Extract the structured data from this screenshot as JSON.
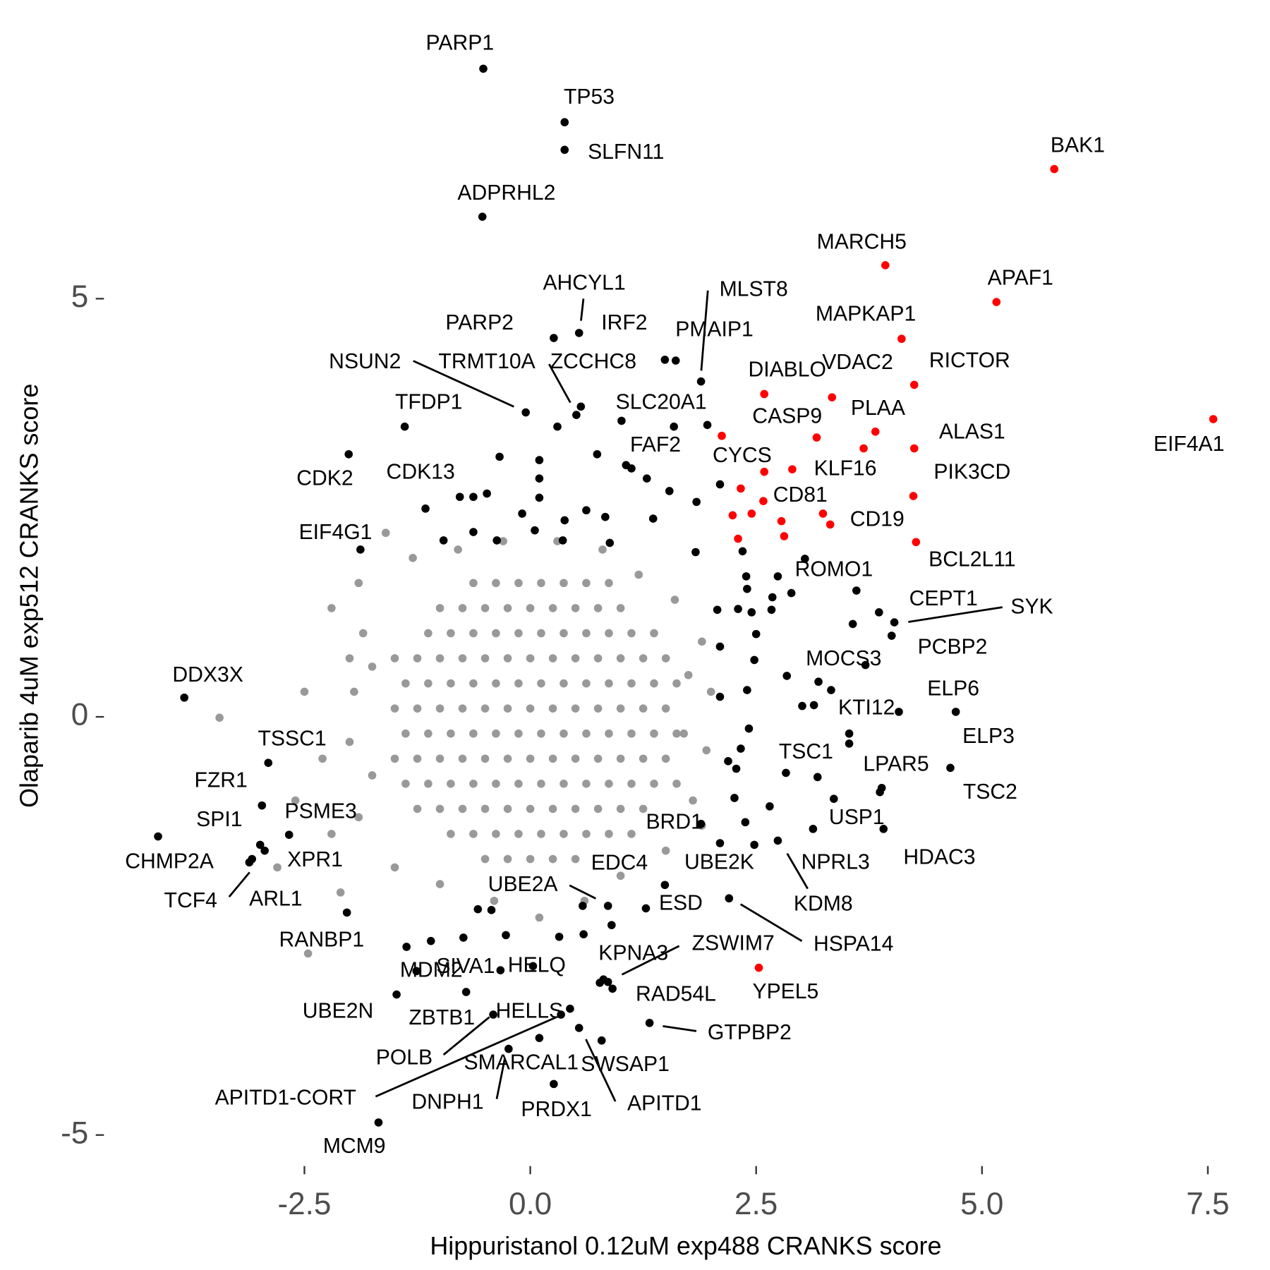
{
  "chart_data": {
    "type": "scatter",
    "x_label": "Hippuristanol 0.12uM exp488 CRANKS score",
    "y_label": "Olaparib 4uM exp512 CRANKS score",
    "xlim": [
      -4.8,
      7.9
    ],
    "ylim": [
      -5.3,
      8.0
    ],
    "xticks": [
      -2.5,
      {
        "value": 0,
        "label": "0.0"
      },
      2.5,
      {
        "value": 5,
        "label": "5.0"
      },
      7.5
    ],
    "yticks": [
      -5,
      0,
      5
    ],
    "grid": false,
    "series": [
      {
        "color": "#999999",
        "x": [
          -0.63,
          -0.38,
          -0.13,
          0.12,
          0.37,
          0.62,
          0.87,
          -1.0,
          -0.75,
          -0.5,
          -0.25,
          0,
          0.25,
          0.5,
          0.75,
          1.0,
          -1.13,
          -0.88,
          -0.63,
          -0.38,
          -0.13,
          0.12,
          0.37,
          0.62,
          0.87,
          1.12,
          1.37,
          -1.5,
          -1.25,
          -1.0,
          -0.75,
          -0.5,
          -0.25,
          0,
          0.25,
          0.5,
          0.75,
          1.0,
          1.25,
          1.5,
          -1.38,
          -1.13,
          -0.88,
          -0.63,
          -0.38,
          -0.13,
          0.12,
          0.37,
          0.62,
          0.87,
          1.12,
          1.37,
          1.62,
          -1.5,
          -1.25,
          -1.0,
          -0.75,
          -0.5,
          -0.25,
          0,
          0.25,
          0.5,
          0.75,
          1.0,
          1.25,
          1.5,
          -1.38,
          -1.13,
          -0.88,
          -0.63,
          -0.38,
          -0.13,
          0.12,
          0.37,
          0.62,
          0.87,
          1.12,
          1.37,
          1.62,
          -1.5,
          -1.25,
          -1.0,
          -0.75,
          -0.5,
          -0.25,
          0,
          0.25,
          0.5,
          0.75,
          1.0,
          1.25,
          1.5,
          -1.38,
          -1.13,
          -0.88,
          -0.63,
          -0.38,
          -0.13,
          0.12,
          0.37,
          0.62,
          0.87,
          1.12,
          1.37,
          1.62,
          -1.25,
          -1.0,
          -0.75,
          -0.5,
          -0.25,
          0,
          0.25,
          0.5,
          0.75,
          1.0,
          1.25,
          -0.88,
          -0.63,
          -0.38,
          -0.13,
          0.12,
          0.37,
          0.62,
          0.87,
          1.12,
          -0.5,
          -0.25,
          0,
          0.25,
          0.5,
          -3.44,
          -2.2,
          -2.0,
          -2.5,
          -2.3,
          -2.6,
          -2.46,
          -2.2,
          -1.9,
          -1.6,
          -1.3,
          -0.8,
          -0.3,
          0.3,
          0.8,
          1.2,
          1.6,
          1.9,
          2.0,
          1.95,
          1.8,
          1.9,
          1.5,
          1.0,
          0.6,
          0.1,
          -0.4,
          -1.0,
          -1.5,
          -1.9,
          -2.0,
          -1.95,
          -1.85,
          -2.8,
          -2.1,
          1.7,
          1.75,
          -1.75,
          -1.75
        ],
        "y": [
          1.6,
          1.6,
          1.6,
          1.6,
          1.6,
          1.6,
          1.6,
          1.3,
          1.3,
          1.3,
          1.3,
          1.3,
          1.3,
          1.3,
          1.3,
          1.3,
          1.0,
          1.0,
          1.0,
          1.0,
          1.0,
          1.0,
          1.0,
          1.0,
          1.0,
          1.0,
          1.0,
          0.7,
          0.7,
          0.7,
          0.7,
          0.7,
          0.7,
          0.7,
          0.7,
          0.7,
          0.7,
          0.7,
          0.7,
          0.7,
          0.4,
          0.4,
          0.4,
          0.4,
          0.4,
          0.4,
          0.4,
          0.4,
          0.4,
          0.4,
          0.4,
          0.4,
          0.4,
          0.1,
          0.1,
          0.1,
          0.1,
          0.1,
          0.1,
          0.1,
          0.1,
          0.1,
          0.1,
          0.1,
          0.1,
          0.1,
          -0.2,
          -0.2,
          -0.2,
          -0.2,
          -0.2,
          -0.2,
          -0.2,
          -0.2,
          -0.2,
          -0.2,
          -0.2,
          -0.2,
          -0.2,
          -0.5,
          -0.5,
          -0.5,
          -0.5,
          -0.5,
          -0.5,
          -0.5,
          -0.5,
          -0.5,
          -0.5,
          -0.5,
          -0.5,
          -0.5,
          -0.8,
          -0.8,
          -0.8,
          -0.8,
          -0.8,
          -0.8,
          -0.8,
          -0.8,
          -0.8,
          -0.8,
          -0.8,
          -0.8,
          -0.8,
          -1.1,
          -1.1,
          -1.1,
          -1.1,
          -1.1,
          -1.1,
          -1.1,
          -1.1,
          -1.1,
          -1.1,
          -1.1,
          -1.4,
          -1.4,
          -1.4,
          -1.4,
          -1.4,
          -1.4,
          -1.4,
          -1.4,
          -1.4,
          -1.7,
          -1.7,
          -1.7,
          -1.7,
          -1.7,
          -0.01,
          1.3,
          0.7,
          0.3,
          -0.5,
          -1.0,
          -2.83,
          -1.4,
          1.6,
          2.2,
          1.9,
          2.0,
          2.1,
          2.1,
          2.0,
          1.7,
          1.4,
          0.9,
          0.3,
          -0.4,
          -1.0,
          -1.3,
          -1.6,
          -1.9,
          -2.2,
          -2.4,
          -2.2,
          -2.0,
          -1.8,
          -1.2,
          -0.3,
          0.3,
          1.0,
          -1.8,
          -2.1,
          -0.2,
          0.5,
          -0.7,
          0.6
        ]
      },
      {
        "color": "#000000",
        "x": [
          -0.52,
          0.38,
          0.38,
          -0.53,
          0.54,
          1.61,
          0.26,
          1.49,
          1.89,
          0.56,
          0.3,
          -0.05,
          -1.39,
          1.59,
          1.06,
          -2.01,
          -1.16,
          -1.88,
          -3.83,
          -2.9,
          -2.97,
          -2.67,
          -2.99,
          -4.12,
          -2.94,
          -3.11,
          -3.08,
          -2.03,
          -1.26,
          -0.33,
          0.03,
          -1.48,
          -0.71,
          -0.41,
          0.44,
          0.34,
          0.1,
          -0.24,
          0.79,
          0.26,
          0.54,
          -1.68,
          1.32,
          0.91,
          0.81,
          0.86,
          2.2,
          1.28,
          0.86,
          0.58,
          1.89,
          2.1,
          2.74,
          3.13,
          3.36,
          3.91,
          3.89,
          4.65,
          2.83,
          4.71,
          4.08,
          3.53,
          3.71,
          4.0,
          4.03,
          3.86,
          3.61,
          1.96,
          0.51,
          1.01,
          0.74,
          0.1,
          -0.34,
          -0.78,
          -0.48,
          -0.63,
          0.1,
          0.1,
          -0.09,
          0.62,
          0.83,
          1.36,
          1.54,
          1.84,
          1.12,
          1.29,
          2.1,
          0.38,
          -0.96,
          -0.63,
          -0.37,
          0.05,
          0.36,
          0.88,
          1.83,
          2.35,
          2.39,
          2.74,
          3.04,
          2.4,
          2.07,
          2.3,
          2.45,
          2.67,
          2.89,
          2.68,
          3.57,
          2.5,
          2.1,
          2.48,
          2.84,
          3.19,
          3.33,
          2.4,
          2.1,
          3.01,
          3.14,
          3.53,
          2.42,
          2.33,
          2.19,
          2.28,
          3.18,
          3.87,
          2.26,
          2.38,
          2.65,
          2.48,
          1.49,
          -0.58,
          -0.43,
          -0.27,
          -0.74,
          -1.1,
          -1.37,
          0.32,
          0.59,
          0.9,
          0.77
        ],
        "y": [
          7.75,
          7.11,
          6.78,
          5.98,
          4.59,
          4.26,
          4.53,
          4.27,
          4.01,
          3.71,
          3.47,
          3.64,
          3.47,
          3.47,
          3.01,
          3.14,
          2.49,
          2.0,
          0.23,
          -0.55,
          -1.06,
          -1.41,
          -1.53,
          -1.43,
          -1.6,
          -1.74,
          -1.7,
          -2.34,
          -3.04,
          -3.03,
          -2.98,
          -3.32,
          -3.29,
          -3.56,
          -3.49,
          -3.56,
          -3.84,
          -3.97,
          -3.87,
          -4.39,
          -3.72,
          -4.85,
          -3.66,
          -3.25,
          -3.14,
          -3.17,
          -2.17,
          -2.29,
          -2.26,
          -2.26,
          -1.28,
          -1.51,
          -1.48,
          -1.34,
          -0.98,
          -1.34,
          -0.85,
          -0.61,
          -0.67,
          0.06,
          0.06,
          -0.2,
          0.62,
          0.97,
          1.13,
          1.25,
          1.51,
          3.49,
          3.61,
          3.54,
          3.14,
          3.07,
          3.11,
          2.63,
          2.67,
          2.63,
          2.85,
          2.62,
          2.43,
          2.47,
          2.39,
          2.37,
          2.7,
          2.57,
          2.97,
          2.85,
          2.78,
          2.35,
          2.11,
          2.21,
          2.11,
          2.23,
          2.11,
          2.08,
          1.97,
          1.98,
          1.68,
          1.68,
          1.89,
          1.53,
          1.28,
          1.29,
          1.25,
          1.28,
          1.48,
          1.43,
          1.11,
          0.99,
          0.84,
          0.68,
          0.49,
          0.42,
          0.32,
          0.32,
          0.24,
          0.13,
          0.14,
          -0.32,
          -0.14,
          -0.38,
          -0.53,
          -0.62,
          -0.72,
          -0.9,
          -0.97,
          -1.26,
          -1.07,
          -1.53,
          -2.01,
          -2.3,
          -2.31,
          -2.61,
          -2.64,
          -2.68,
          -2.75,
          -2.63,
          -2.6,
          -2.49,
          -3.18
        ],
        "labels": [
          "PARP1",
          "TP53",
          "SLFN11",
          "ADPRHL2",
          "AHCYL1",
          "IRF2",
          "PARP2",
          "PMAIP1",
          "MLST8",
          "ZCCHC8",
          "TRMT10A",
          "NSUN2",
          "TFDP1",
          "SLC20A1",
          "FAF2",
          "CDK2",
          "CDK13",
          "EIF4G1",
          "DDX3X",
          "TSSC1",
          "FZR1",
          "PSME3",
          "SPI1",
          "CHMP2A",
          "XPR1",
          "TCF4",
          "ARL1",
          "RANBP1",
          "MDM2",
          "SIVA1",
          "HELQ",
          "UBE2N",
          "ZBTB1",
          "POLB",
          "HELLS",
          "APITD1-CORT",
          "SMARCAL1",
          "DNPH1",
          "SWSAP1",
          "PRDX1",
          "APITD1",
          "MCM9",
          "GTPBP2",
          "RAD54L",
          "KPNA3",
          "ZSWIM7",
          "HSPA14",
          "ESD",
          "UBE2A",
          "EDC4",
          "BRD1",
          "UBE2K",
          "KDM8",
          "NPRL3",
          "USP1",
          "HDAC3",
          "LPAR5",
          "TSC2",
          "TSC1",
          "ELP3",
          "ELP6",
          "KTI12",
          "MOCS3",
          "PCBP2",
          "SYK",
          "CEPT1",
          "ROMO1",
          null,
          null,
          null,
          null,
          null,
          null,
          null,
          null,
          null,
          null,
          null,
          null,
          null,
          null,
          null,
          null,
          null,
          null,
          null,
          null,
          null,
          null,
          null,
          null,
          null,
          null,
          null,
          null,
          null,
          null,
          null,
          null,
          null,
          null,
          null,
          null,
          null,
          null,
          null,
          null,
          null,
          null,
          null,
          null,
          null,
          null,
          null,
          null,
          null,
          null,
          null,
          null,
          null,
          null,
          null,
          null,
          null,
          null,
          null,
          null,
          null,
          null,
          null,
          null,
          null,
          null,
          null,
          null,
          null,
          null,
          null
        ]
      },
      {
        "color": "#ff0000",
        "x": [
          3.32,
          2.9,
          2.58,
          2.33,
          3.17,
          2.59,
          3.34,
          3.93,
          4.11,
          5.16,
          5.8,
          4.25,
          3.82,
          4.25,
          4.24,
          4.27,
          7.56,
          2.53,
          2.12,
          2.24,
          2.3,
          2.45,
          2.78,
          2.81,
          3.24,
          3.69,
          2.59
        ],
        "y": [
          2.3,
          2.96,
          2.58,
          2.73,
          3.34,
          3.86,
          3.82,
          5.4,
          4.52,
          4.96,
          6.55,
          3.97,
          3.41,
          3.21,
          2.64,
          2.09,
          3.56,
          -3.0,
          3.36,
          2.41,
          2.13,
          2.43,
          2.34,
          2.16,
          2.43,
          3.21,
          2.93
        ],
        "labels": [
          "CD19",
          "KLF16",
          "CD81",
          "CYCS",
          "CASP9",
          "DIABLO",
          "VDAC2",
          "MARCH5",
          "MAPKAP1",
          "APAF1",
          "BAK1",
          "RICTOR",
          "PLAA",
          "ALAS1",
          "PIK3CD",
          "BCL2L11",
          "EIF4A1",
          "YPEL5",
          null,
          null,
          null,
          null,
          null,
          null,
          null,
          null,
          null
        ]
      }
    ]
  }
}
